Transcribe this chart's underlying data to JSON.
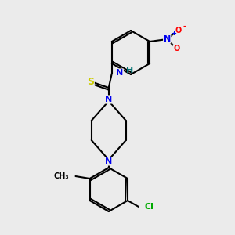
{
  "background_color": "#ebebeb",
  "bond_color": "#000000",
  "atom_colors": {
    "N": "#0000ee",
    "O": "#ff0000",
    "S": "#cccc00",
    "Cl": "#00aa00",
    "C": "#000000",
    "H": "#007070"
  },
  "figsize": [
    3.0,
    3.0
  ],
  "dpi": 100
}
